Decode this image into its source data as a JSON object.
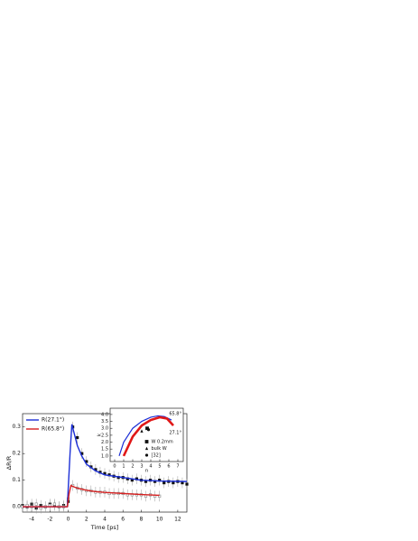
{
  "chart_data": [
    {
      "type": "line",
      "xlabel": "Time [ps]",
      "ylabel": "ΔR/R",
      "xlim": [
        -5,
        13
      ],
      "xticks": [
        -4,
        -2,
        0,
        2,
        4,
        6,
        8,
        10,
        12
      ],
      "ylim": [
        -0.02,
        0.35
      ],
      "yticks": [
        {
          "value": 0,
          "label": "0.0"
        },
        0.1,
        0.2,
        0.3
      ],
      "legend": "upper left",
      "series": [
        {
          "name": "R(27.1°)",
          "color": "#1c2fd6",
          "x": [
            -5,
            -0.1,
            0.2,
            0.4,
            0.7,
            1,
            1.5,
            2,
            3,
            4,
            6,
            8,
            10,
            13
          ],
          "values": [
            0,
            0,
            0.2,
            0.31,
            0.27,
            0.23,
            0.19,
            0.16,
            0.135,
            0.12,
            0.11,
            0.1,
            0.097,
            0.095
          ]
        },
        {
          "name": "R(65.8°)",
          "color": "#d62020",
          "x": [
            -5,
            -0.1,
            0.1,
            0.3,
            0.6,
            1,
            2,
            3,
            4,
            6,
            8,
            10
          ],
          "values": [
            0,
            0,
            0.05,
            0.08,
            0.075,
            0.07,
            0.062,
            0.057,
            0.054,
            0.05,
            0.046,
            0.043
          ]
        },
        {
          "marker": "square",
          "color": "#111111",
          "error": 0.02,
          "x": [
            -5,
            -4.5,
            -4,
            -3.5,
            -3,
            -2.5,
            -2,
            -1.5,
            -1,
            -0.5,
            0,
            0.5,
            1,
            1.5,
            2,
            2.5,
            3,
            3.5,
            4,
            4.5,
            5,
            5.5,
            6,
            6.5,
            7,
            7.5,
            8,
            8.5,
            9,
            9.5,
            10,
            10.5,
            11,
            11.5,
            12,
            12.5,
            13
          ],
          "values": [
            0.005,
            0.0,
            0.01,
            -0.005,
            0.005,
            0.0,
            0.01,
            0.005,
            0.0,
            0.005,
            0.02,
            0.3,
            0.26,
            0.2,
            0.17,
            0.15,
            0.14,
            0.13,
            0.125,
            0.12,
            0.115,
            0.11,
            0.11,
            0.105,
            0.1,
            0.105,
            0.1,
            0.095,
            0.1,
            0.095,
            0.1,
            0.09,
            0.095,
            0.09,
            0.095,
            0.09,
            0.085
          ]
        },
        {
          "marker": "open-square",
          "color": "#888888",
          "error": 0.02,
          "x": [
            -5,
            -4.5,
            -4,
            -3.5,
            -3,
            -2.5,
            -2,
            -1.5,
            -1,
            -0.5,
            0,
            0.5,
            1,
            1.5,
            2,
            2.5,
            3,
            3.5,
            4,
            4.5,
            5,
            5.5,
            6,
            6.5,
            7,
            7.5,
            8,
            8.5,
            9,
            9.5,
            10
          ],
          "values": [
            0.0,
            0.005,
            0.0,
            0.01,
            -0.005,
            0.0,
            0.005,
            0.01,
            0.0,
            0.0,
            0.03,
            0.08,
            0.07,
            0.065,
            0.06,
            0.06,
            0.055,
            0.055,
            0.055,
            0.05,
            0.05,
            0.05,
            0.05,
            0.045,
            0.045,
            0.045,
            0.045,
            0.04,
            0.045,
            0.04,
            0.04
          ]
        }
      ]
    },
    {
      "type": "line",
      "xlabel": "n",
      "ylabel": "k",
      "xlim": [
        -0.5,
        7.6
      ],
      "xticks": [
        0,
        1,
        2,
        3,
        4,
        5,
        6,
        7
      ],
      "ylim": [
        0.6,
        4.45
      ],
      "yticks": [
        {
          "value": 1,
          "label": "1.0"
        },
        1.5,
        {
          "value": 2,
          "label": "2.0"
        },
        2.5,
        {
          "value": 3,
          "label": "3.0"
        },
        3.5,
        {
          "value": 4,
          "label": "4.0"
        }
      ],
      "annotations": [
        "65.8°",
        "27.1°"
      ],
      "legend": "lower right",
      "series": [
        {
          "color": "#1c2fd6",
          "x": [
            0.5,
            1,
            2,
            3,
            4,
            4.8,
            5.5,
            6.3
          ],
          "values": [
            1.0,
            2.0,
            3.0,
            3.5,
            3.8,
            3.9,
            3.85,
            3.6
          ]
        },
        {
          "color": "#e01818",
          "x": [
            1,
            2,
            3,
            4,
            5,
            5.8,
            6.5
          ],
          "values": [
            1.0,
            2.4,
            3.2,
            3.6,
            3.8,
            3.7,
            3.2
          ]
        },
        {
          "name": "W 0.2mm",
          "marker": "square",
          "color": "#111111",
          "x": [
            3.6
          ],
          "values": [
            3.0
          ]
        },
        {
          "name": "bulk W",
          "marker": "triangle",
          "color": "#111111",
          "x": [
            3.0
          ],
          "values": [
            2.8
          ]
        },
        {
          "name": "[32]",
          "marker": "circle",
          "color": "#111111",
          "x": [
            3.75
          ],
          "values": [
            2.9
          ]
        }
      ]
    }
  ]
}
